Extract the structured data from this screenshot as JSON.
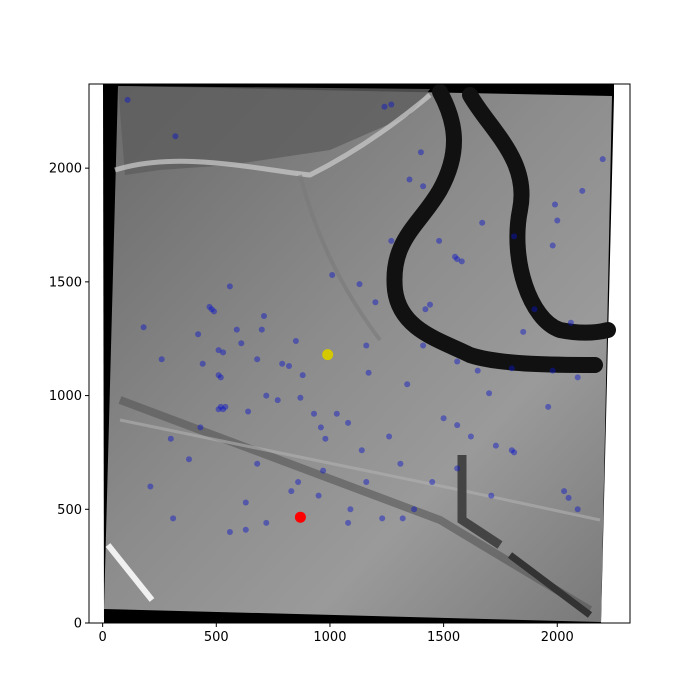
{
  "chart_data": {
    "type": "scatter",
    "background": "grayscale aerial image of an urban area with a dark winding river/canal",
    "x_ticks": [
      "0",
      "500",
      "1000",
      "1500",
      "2000"
    ],
    "y_ticks": [
      "0",
      "500",
      "1000",
      "1500",
      "2000"
    ],
    "xlim": [
      -60,
      2320
    ],
    "ylim": [
      0,
      2370
    ],
    "grid": false,
    "colors": {
      "points": "#0a14c8",
      "red_marker": "#ff0000",
      "yellow_marker": "#d4c800",
      "river": "#111111"
    },
    "series": [
      {
        "marker": "circle",
        "points": [
          [
            110,
            2300
          ],
          [
            1240,
            2270
          ],
          [
            1270,
            2280
          ],
          [
            320,
            2140
          ],
          [
            2200,
            2040
          ],
          [
            2110,
            1900
          ],
          [
            1410,
            1920
          ],
          [
            1400,
            2070
          ],
          [
            1350,
            1950
          ],
          [
            1560,
            1600
          ],
          [
            1580,
            1590
          ],
          [
            1550,
            1610
          ],
          [
            1270,
            1680
          ],
          [
            1440,
            1400
          ],
          [
            1420,
            1380
          ],
          [
            1200,
            1410
          ],
          [
            1850,
            1280
          ],
          [
            1900,
            1380
          ],
          [
            2060,
            1320
          ],
          [
            480,
            1380
          ],
          [
            490,
            1370
          ],
          [
            470,
            1390
          ],
          [
            560,
            1480
          ],
          [
            590,
            1290
          ],
          [
            610,
            1230
          ],
          [
            510,
            1200
          ],
          [
            530,
            1190
          ],
          [
            700,
            1290
          ],
          [
            850,
            1240
          ],
          [
            440,
            1140
          ],
          [
            510,
            1090
          ],
          [
            520,
            1080
          ],
          [
            680,
            1160
          ],
          [
            790,
            1140
          ],
          [
            820,
            1130
          ],
          [
            880,
            1090
          ],
          [
            1410,
            1220
          ],
          [
            1560,
            1150
          ],
          [
            1650,
            1110
          ],
          [
            1800,
            1120
          ],
          [
            1980,
            1110
          ],
          [
            2090,
            1080
          ],
          [
            510,
            940
          ],
          [
            520,
            950
          ],
          [
            530,
            940
          ],
          [
            540,
            950
          ],
          [
            720,
            1000
          ],
          [
            770,
            980
          ],
          [
            870,
            990
          ],
          [
            930,
            920
          ],
          [
            960,
            860
          ],
          [
            980,
            810
          ],
          [
            430,
            860
          ],
          [
            1800,
            760
          ],
          [
            1810,
            750
          ],
          [
            1310,
            700
          ],
          [
            1090,
            500
          ],
          [
            1230,
            460
          ],
          [
            1080,
            440
          ],
          [
            1320,
            460
          ],
          [
            1370,
            500
          ],
          [
            1450,
            620
          ],
          [
            2030,
            580
          ],
          [
            2050,
            550
          ],
          [
            2090,
            500
          ],
          [
            630,
            530
          ],
          [
            720,
            440
          ],
          [
            830,
            580
          ],
          [
            950,
            560
          ],
          [
            1160,
            620
          ],
          [
            210,
            600
          ],
          [
            310,
            460
          ],
          [
            560,
            400
          ],
          [
            630,
            410
          ],
          [
            1730,
            780
          ],
          [
            1500,
            900
          ],
          [
            1560,
            870
          ],
          [
            260,
            1160
          ],
          [
            180,
            1300
          ],
          [
            420,
            1270
          ],
          [
            710,
            1350
          ],
          [
            1010,
            1530
          ],
          [
            1130,
            1490
          ],
          [
            1160,
            1220
          ],
          [
            1340,
            1050
          ],
          [
            1030,
            920
          ],
          [
            1080,
            880
          ],
          [
            1140,
            760
          ],
          [
            1260,
            820
          ],
          [
            1700,
            1010
          ],
          [
            1960,
            950
          ],
          [
            1710,
            560
          ],
          [
            1560,
            680
          ],
          [
            1620,
            820
          ],
          [
            680,
            700
          ],
          [
            860,
            620
          ],
          [
            970,
            670
          ],
          [
            380,
            720
          ],
          [
            300,
            810
          ],
          [
            1170,
            1100
          ],
          [
            640,
            930
          ],
          [
            1980,
            1660
          ],
          [
            1990,
            1840
          ],
          [
            2000,
            1770
          ],
          [
            1810,
            1700
          ],
          [
            1670,
            1760
          ],
          [
            1480,
            1680
          ]
        ]
      },
      {
        "marker": "circle",
        "points": [
          [
            870,
            465
          ]
        ],
        "color_key": "red_marker"
      },
      {
        "marker": "circle",
        "points": [
          [
            990,
            1180
          ]
        ],
        "color_key": "yellow_marker"
      }
    ]
  }
}
